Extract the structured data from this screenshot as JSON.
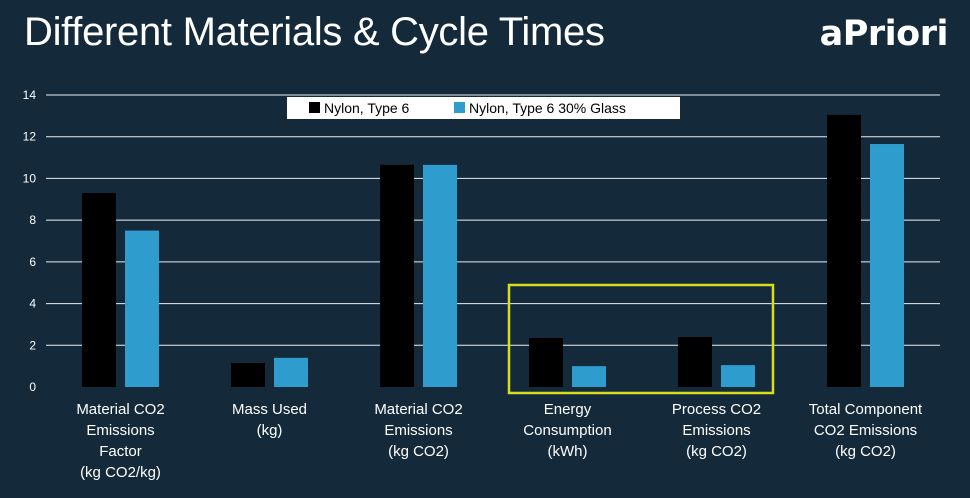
{
  "slide": {
    "title": "Different Materials & Cycle Times",
    "logo_text": "aPriori"
  },
  "colors": {
    "background": "#142a3a",
    "series_1": "#000000",
    "series_2": "#2e9ccc",
    "highlight_box": "#d6de1e",
    "text": "#ffffff",
    "gridline": "#e9eef2"
  },
  "chart_data": {
    "type": "bar",
    "title": "",
    "xlabel": "",
    "ylabel": "",
    "ylim": [
      0,
      14
    ],
    "yticks": [
      0,
      2,
      4,
      6,
      8,
      10,
      12,
      14
    ],
    "grid": true,
    "legend_position": "top-center",
    "categories": [
      [
        "Material CO2",
        "Emissions",
        "Factor",
        "(kg CO2/kg)"
      ],
      [
        "Mass Used",
        "(kg)"
      ],
      [
        "Material CO2",
        "Emissions",
        "(kg CO2)"
      ],
      [
        "Energy",
        "Consumption",
        "(kWh)"
      ],
      [
        "Process CO2",
        "Emissions",
        "(kg CO2)"
      ],
      [
        "Total Component",
        "CO2 Emissions",
        "(kg CO2)"
      ]
    ],
    "series": [
      {
        "name": "Nylon, Type 6",
        "values": [
          9.3,
          1.15,
          10.65,
          2.35,
          2.4,
          13.05
        ]
      },
      {
        "name": "Nylon, Type 6 30% Glass",
        "values": [
          7.5,
          1.4,
          10.65,
          1.0,
          1.05,
          11.65
        ]
      }
    ],
    "highlighted_categories": [
      3,
      4
    ]
  }
}
